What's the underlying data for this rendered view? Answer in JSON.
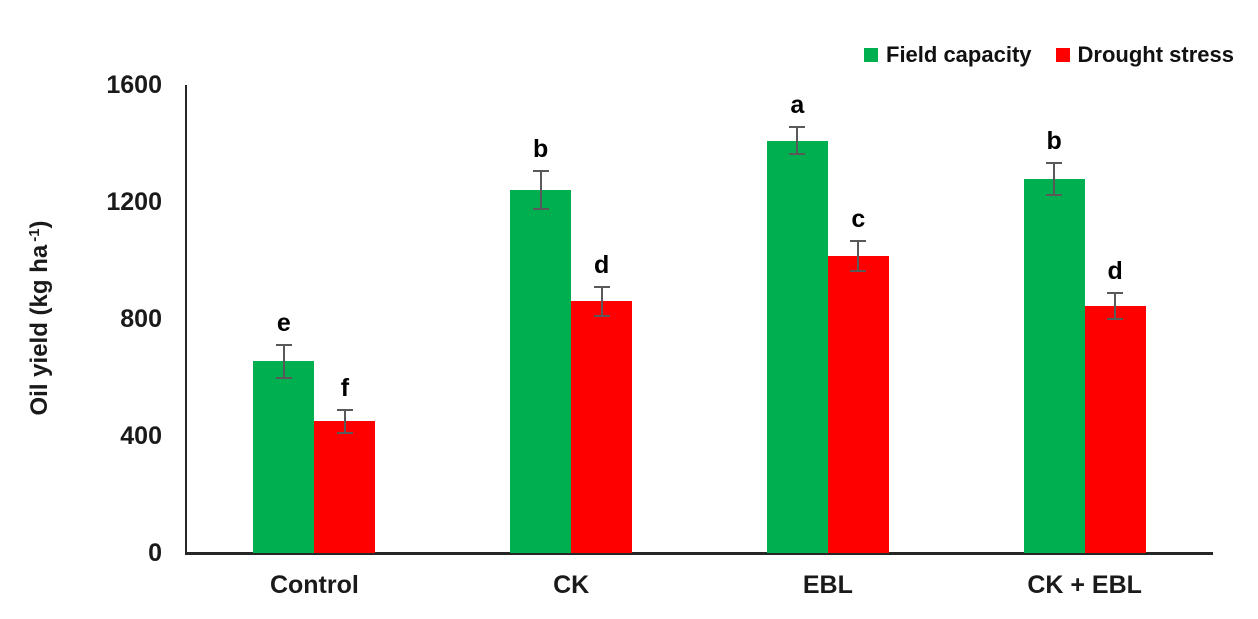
{
  "chart_data": {
    "type": "bar",
    "title": "",
    "categories": [
      "Control",
      "CK",
      "EBL",
      "CK + EBL"
    ],
    "series": [
      {
        "name": "Field capacity",
        "color": "#00B050",
        "values": [
          655,
          1240,
          1410,
          1280
        ],
        "errors": [
          55,
          65,
          45,
          55
        ],
        "letters": [
          "e",
          "b",
          "a",
          "b"
        ]
      },
      {
        "name": "Drought stress",
        "color": "#FF0000",
        "values": [
          450,
          860,
          1015,
          845
        ],
        "errors": [
          40,
          50,
          50,
          45
        ],
        "letters": [
          "f",
          "d",
          "c",
          "d"
        ]
      }
    ],
    "xlabel": "",
    "ylabel": "Oil yield (kg ha⁻¹)",
    "ylabel_parts": {
      "prefix": "Oil yield (kg ha",
      "sup": "-1",
      "suffix": ")"
    },
    "ylim": [
      0,
      1600
    ],
    "yticks": [
      0,
      400,
      800,
      1200,
      1600
    ],
    "grid": false,
    "legend_position": "top-right",
    "error_bar_color": "#595959",
    "axis_color": "#262626"
  }
}
